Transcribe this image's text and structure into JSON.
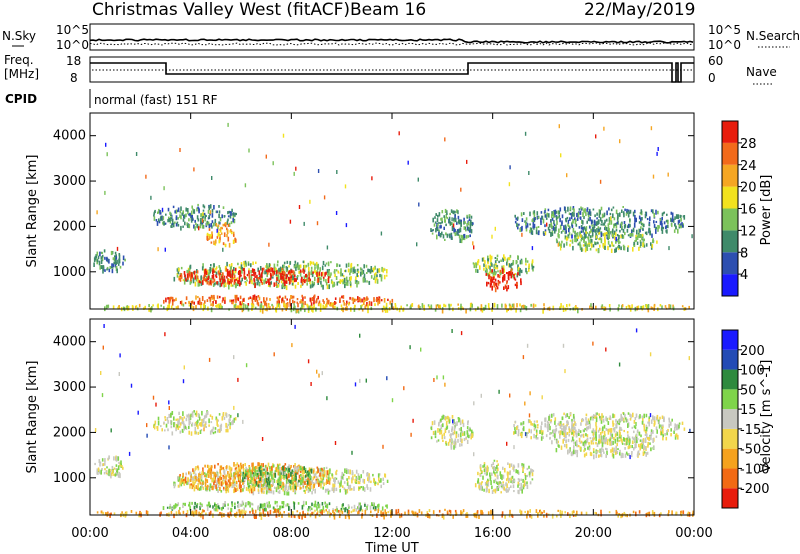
{
  "header": {
    "station": "Christmas Valley West (fitACF)",
    "beam": "Beam 16",
    "date": "22/May/2019"
  },
  "aux_labels": {
    "nsky": "N.Sky",
    "nsky_hi": "10^5",
    "nsky_lo": "10^0",
    "nsearch": "N.Search",
    "nsearch_hi": "10^5",
    "nsearch_lo": "10^0",
    "freq": "Freq.",
    "freq_unit": "[MHz]",
    "freq_hi": "18",
    "freq_lo": "8",
    "nave": "Nave",
    "nave_hi": "60",
    "nave_lo": "0",
    "cpid": "CPID",
    "cpid_text": "normal (fast) 151 RF"
  },
  "colors": {
    "power_scale": [
      "#1a1aff",
      "#2d4fb0",
      "#3f8a6a",
      "#7cc25b",
      "#f2e21e",
      "#f5a623",
      "#f26a1b",
      "#e81c0c"
    ],
    "velocity_scale": [
      "#1a1aff",
      "#234bb5",
      "#2e8a3e",
      "#7fd44a",
      "#c8c8c0",
      "#f2d64b",
      "#f5a21e",
      "#f26a14",
      "#e81c0c"
    ]
  },
  "chart_data": [
    {
      "type": "heatmap",
      "name": "power",
      "ylabel": "Slant Range [km]",
      "xlabel": "Time UT",
      "x_ticks": [
        "00:00",
        "04:00",
        "08:00",
        "12:00",
        "16:00",
        "20:00",
        "00:00"
      ],
      "y_ticks": [
        1000,
        2000,
        3000,
        4000
      ],
      "ylim": [
        180,
        4500
      ],
      "xlim_hours": [
        0,
        24
      ],
      "colorbar_label": "Power [dB]",
      "colorbar_ticks": [
        "4",
        "8",
        "12",
        "16",
        "20",
        "24",
        "28"
      ],
      "echo_regions": [
        {
          "t0": 0.1,
          "t1": 1.4,
          "r0": 1050,
          "r1": 1500,
          "level": 2
        },
        {
          "t0": 2.5,
          "t1": 5.8,
          "r0": 2000,
          "r1": 2500,
          "level": 2
        },
        {
          "t0": 4.6,
          "t1": 5.8,
          "r0": 1600,
          "r1": 2100,
          "level": 5
        },
        {
          "t0": 3.3,
          "t1": 11.8,
          "r0": 700,
          "r1": 1250,
          "level": 3
        },
        {
          "t0": 3.5,
          "t1": 9.5,
          "r0": 750,
          "r1": 1100,
          "level": 7
        },
        {
          "t0": 2.8,
          "t1": 12.0,
          "r0": 300,
          "r1": 500,
          "level": 6
        },
        {
          "t0": 0.2,
          "t1": 24.0,
          "r0": 180,
          "r1": 320,
          "level": 4
        },
        {
          "t0": 13.5,
          "t1": 15.2,
          "r0": 1700,
          "r1": 2400,
          "level": 2
        },
        {
          "t0": 15.2,
          "t1": 17.6,
          "r0": 950,
          "r1": 1400,
          "level": 3
        },
        {
          "t0": 15.7,
          "t1": 17.1,
          "r0": 650,
          "r1": 1100,
          "level": 7
        },
        {
          "t0": 16.8,
          "t1": 23.6,
          "r0": 1800,
          "r1": 2450,
          "level": 2
        },
        {
          "t0": 18.5,
          "t1": 22.5,
          "r0": 1500,
          "r1": 1900,
          "level": 3
        }
      ]
    },
    {
      "type": "heatmap",
      "name": "velocity",
      "ylabel": "Slant Range [km]",
      "xlabel": "Time UT",
      "x_ticks": [
        "00:00",
        "04:00",
        "08:00",
        "12:00",
        "16:00",
        "20:00",
        "00:00"
      ],
      "y_ticks": [
        1000,
        2000,
        3000,
        4000
      ],
      "ylim": [
        180,
        4500
      ],
      "xlim_hours": [
        0,
        24
      ],
      "colorbar_label": "Velocity [m s^-1]",
      "colorbar_ticks": [
        "200",
        "100",
        "50",
        "15",
        "-15",
        "-50",
        "-100",
        "-200"
      ],
      "echo_regions": [
        {
          "t0": 0.1,
          "t1": 1.4,
          "r0": 1050,
          "r1": 1500,
          "level": 4
        },
        {
          "t0": 2.5,
          "t1": 5.8,
          "r0": 2000,
          "r1": 2500,
          "level": 4
        },
        {
          "t0": 3.3,
          "t1": 11.8,
          "r0": 700,
          "r1": 1250,
          "level": 4
        },
        {
          "t0": 3.5,
          "t1": 9.5,
          "r0": 750,
          "r1": 1350,
          "level": 6
        },
        {
          "t0": 6.0,
          "t1": 9.0,
          "r0": 800,
          "r1": 1300,
          "level": 3
        },
        {
          "t0": 2.8,
          "t1": 12.0,
          "r0": 300,
          "r1": 500,
          "level": 3
        },
        {
          "t0": 0.2,
          "t1": 24.0,
          "r0": 180,
          "r1": 320,
          "level": 6
        },
        {
          "t0": 13.5,
          "t1": 15.2,
          "r0": 1700,
          "r1": 2400,
          "level": 4
        },
        {
          "t0": 15.2,
          "t1": 17.6,
          "r0": 700,
          "r1": 1400,
          "level": 4
        },
        {
          "t0": 16.8,
          "t1": 23.6,
          "r0": 1800,
          "r1": 2450,
          "level": 4
        },
        {
          "t0": 18.5,
          "t1": 22.5,
          "r0": 1500,
          "r1": 1900,
          "level": 4
        }
      ]
    }
  ]
}
